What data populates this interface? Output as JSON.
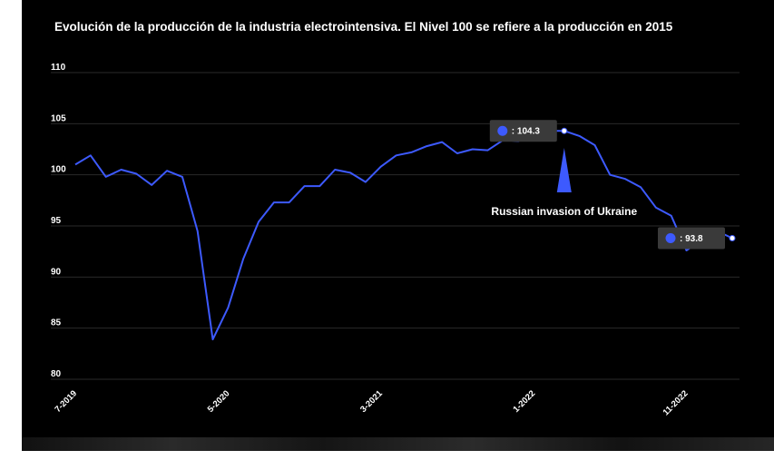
{
  "chart_data": {
    "type": "line",
    "title": "Evolución de la producción de la industria electrointensiva. El Nivel 100 se refiere a la producción en 2015",
    "xlabel": "",
    "ylabel": "",
    "ylim": [
      80,
      110
    ],
    "yticks": [
      80,
      85,
      90,
      95,
      100,
      105,
      110
    ],
    "grid": true,
    "line_color": "#3d5afe",
    "x_tick_labels": [
      "7-2019",
      "5-2020",
      "3-2021",
      "1-2022",
      "11-2022"
    ],
    "x": [
      "7-2019",
      "8-2019",
      "9-2019",
      "10-2019",
      "11-2019",
      "12-2019",
      "1-2020",
      "2-2020",
      "3-2020",
      "4-2020",
      "5-2020",
      "6-2020",
      "7-2020",
      "8-2020",
      "9-2020",
      "10-2020",
      "11-2020",
      "12-2020",
      "1-2021",
      "2-2021",
      "3-2021",
      "4-2021",
      "5-2021",
      "6-2021",
      "7-2021",
      "8-2021",
      "9-2021",
      "10-2021",
      "11-2021",
      "12-2021",
      "1-2022",
      "2-2022",
      "3-2022",
      "4-2022",
      "5-2022",
      "6-2022",
      "7-2022",
      "8-2022",
      "9-2022",
      "10-2022",
      "11-2022",
      "12-2022",
      "1-2023",
      "2-2023"
    ],
    "values": [
      101.0,
      101.9,
      99.8,
      100.5,
      100.1,
      99.0,
      100.4,
      99.8,
      94.5,
      83.9,
      87.0,
      91.8,
      95.4,
      97.3,
      97.3,
      98.9,
      98.9,
      100.5,
      100.2,
      99.3,
      100.8,
      101.9,
      102.2,
      102.8,
      103.2,
      102.1,
      102.5,
      102.4,
      103.4,
      103.3,
      104.0,
      104.3,
      104.3,
      103.8,
      102.9,
      100.0,
      99.6,
      98.8,
      96.8,
      96.0,
      92.6,
      93.6,
      94.5,
      93.8
    ],
    "tooltips": [
      {
        "index": 32,
        "label": ": 104.3"
      },
      {
        "index": 43,
        "label": ": 93.8"
      }
    ],
    "annotation": {
      "text": "Russian invasion of Ukraine",
      "index": 32
    }
  }
}
